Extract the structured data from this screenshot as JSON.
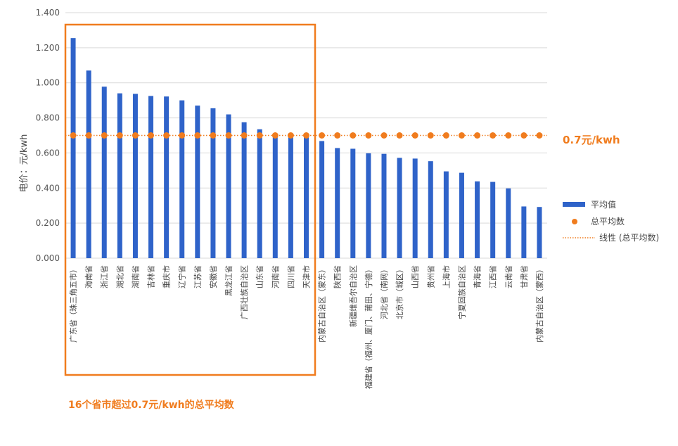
{
  "chart_data": {
    "type": "bar",
    "ylabel": "电价：元/kwh",
    "ylim": [
      0,
      1.4
    ],
    "yticks": [
      "0.000",
      "0.200",
      "0.400",
      "0.600",
      "0.800",
      "1.000",
      "1.200",
      "1.400"
    ],
    "grid": true,
    "legend_position": "right",
    "categories": [
      "广东省（珠三角五市）",
      "海南省",
      "浙江省",
      "湖北省",
      "湖南省",
      "吉林省",
      "重庆市",
      "辽宁省",
      "江苏省",
      "安徽省",
      "黑龙江省",
      "广西壮族自治区",
      "山东省",
      "河南省",
      "四川省",
      "天津市",
      "内蒙古自治区（蒙东）",
      "陕西省",
      "新疆维吾尔自治区",
      "福建省（福州、厦门、莆田、宁德）",
      "河北省（南网）",
      "北京市（城区）",
      "山西省",
      "贵州省",
      "上海市",
      "宁夏回族自治区",
      "青海省",
      "江西省",
      "云南省",
      "甘肃省",
      "内蒙古自治区（蒙西）"
    ],
    "series": [
      {
        "name": "平均值",
        "type": "bar",
        "color": "#2f63c9",
        "values": [
          1.255,
          1.07,
          0.978,
          0.94,
          0.937,
          0.925,
          0.922,
          0.9,
          0.87,
          0.855,
          0.82,
          0.775,
          0.735,
          0.705,
          0.703,
          0.702,
          0.668,
          0.628,
          0.624,
          0.598,
          0.595,
          0.572,
          0.568,
          0.553,
          0.495,
          0.487,
          0.438,
          0.435,
          0.398,
          0.295,
          0.292
        ]
      },
      {
        "name": "总平均数",
        "type": "scatter",
        "color": "#f07c1e",
        "value": 0.7
      },
      {
        "name": "线性 (总平均数)",
        "type": "line",
        "style": "dotted",
        "color": "#f07c1e",
        "value": 0.7
      }
    ],
    "annotations": {
      "avg_label": "0.7元/kwh",
      "box_label": "16个省市超过0.7元/kwh的总平均数",
      "highlight_count": 16,
      "highlight_color": "#f07c1e"
    }
  }
}
